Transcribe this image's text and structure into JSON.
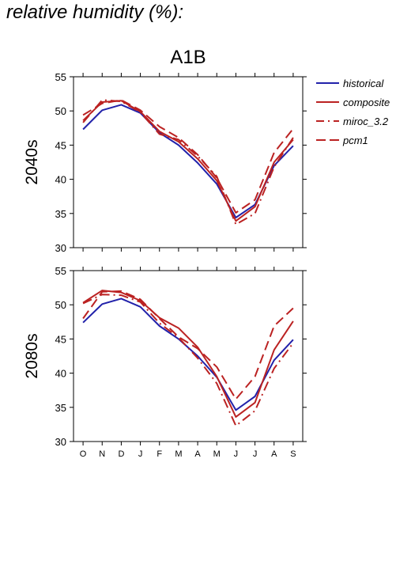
{
  "page_title": "relative humidity (%):",
  "scenario": "A1B",
  "colors": {
    "historical": "#2222aa",
    "composite": "#bb2222",
    "miroc_3.2": "#bb2222",
    "pcm1": "#bb2222"
  },
  "chart_data": [
    {
      "type": "line",
      "title": "2040s",
      "categories": [
        "O",
        "N",
        "D",
        "J",
        "F",
        "M",
        "A",
        "M",
        "J",
        "J",
        "A",
        "S"
      ],
      "ylim": [
        30,
        55
      ],
      "yticks": [
        30,
        35,
        40,
        45,
        50,
        55
      ],
      "grid": false,
      "legend": "right",
      "series": [
        {
          "name": "historical",
          "style": "solid",
          "color": "#2222aa",
          "values": [
            47.3,
            50.1,
            50.9,
            49.7,
            46.8,
            45.0,
            42.4,
            39.3,
            34.4,
            36.3,
            42.0,
            44.9
          ]
        },
        {
          "name": "composite",
          "style": "solid",
          "color": "#bb2222",
          "values": [
            48.6,
            51.3,
            51.5,
            49.9,
            47.0,
            45.5,
            43.0,
            39.8,
            33.9,
            36.0,
            42.5,
            45.8
          ]
        },
        {
          "name": "miroc_3.2",
          "style": "dashdot",
          "color": "#bb2222",
          "values": [
            48.3,
            51.6,
            51.4,
            49.8,
            46.6,
            45.8,
            43.4,
            40.4,
            33.4,
            35.0,
            41.8,
            46.1
          ]
        },
        {
          "name": "pcm1",
          "style": "dash",
          "color": "#bb2222",
          "values": [
            49.4,
            51.1,
            51.6,
            50.1,
            47.7,
            46.1,
            43.6,
            40.2,
            35.1,
            37.0,
            43.9,
            47.4
          ]
        }
      ]
    },
    {
      "type": "line",
      "title": "2080s",
      "categories": [
        "O",
        "N",
        "D",
        "J",
        "F",
        "M",
        "A",
        "M",
        "J",
        "J",
        "A",
        "S"
      ],
      "ylim": [
        30,
        55
      ],
      "yticks": [
        30,
        35,
        40,
        45,
        50,
        55
      ],
      "grid": false,
      "series": [
        {
          "name": "historical",
          "style": "solid",
          "color": "#2222aa",
          "values": [
            47.4,
            50.1,
            50.9,
            49.7,
            46.9,
            45.0,
            42.5,
            39.4,
            34.6,
            36.6,
            41.9,
            44.9
          ]
        },
        {
          "name": "composite",
          "style": "solid",
          "color": "#bb2222",
          "values": [
            50.3,
            52.1,
            51.8,
            50.6,
            48.1,
            46.6,
            43.8,
            39.5,
            33.6,
            35.7,
            43.4,
            47.6
          ]
        },
        {
          "name": "miroc_3.2",
          "style": "dashdot",
          "color": "#bb2222",
          "values": [
            50.2,
            51.5,
            51.4,
            50.4,
            47.3,
            45.2,
            42.2,
            38.5,
            32.3,
            34.5,
            40.7,
            44.4
          ]
        },
        {
          "name": "pcm1",
          "style": "dash",
          "color": "#bb2222",
          "values": [
            48.0,
            51.9,
            52.0,
            50.8,
            48.0,
            45.3,
            43.6,
            40.9,
            36.2,
            39.5,
            46.9,
            49.5
          ]
        }
      ]
    }
  ],
  "legend": {
    "items": [
      {
        "label": "historical",
        "style": "solid",
        "color": "#2222aa"
      },
      {
        "label": "composite",
        "style": "solid",
        "color": "#bb2222"
      },
      {
        "label": "miroc_3.2",
        "style": "dashdot",
        "color": "#bb2222"
      },
      {
        "label": "pcm1",
        "style": "dash",
        "color": "#bb2222"
      }
    ]
  }
}
